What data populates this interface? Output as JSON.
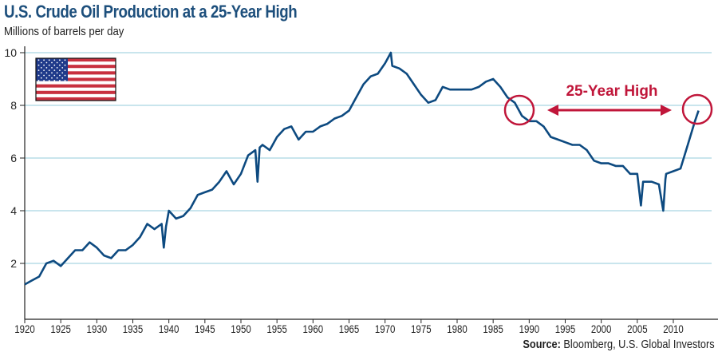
{
  "chart_data": {
    "type": "line",
    "title": "U.S. Crude Oil Production at a 25-Year High",
    "ylabel": "Millions of barrels per day",
    "xlabel": "",
    "source_label": "Source:",
    "source_text": "Bloomberg, U.S. Global Investors",
    "xlim": [
      1920,
      2016
    ],
    "ylim": [
      0,
      10.3
    ],
    "xticks": [
      "1920",
      "1925",
      "1930",
      "1935",
      "1940",
      "1945",
      "1950",
      "1955",
      "1960",
      "1965",
      "1970",
      "1975",
      "1980",
      "1985",
      "1990",
      "1995",
      "2000",
      "2005",
      "2010"
    ],
    "yticks": [
      "2",
      "4",
      "6",
      "8",
      "10"
    ],
    "grid": true,
    "line_color": "#0d4a80",
    "annotation": {
      "label": "25-Year High",
      "color": "#c0163a",
      "from_year": 1989.5,
      "to_year": 2013.5,
      "level": 7.8
    },
    "series": [
      {
        "x": [
          1920,
          1921,
          1922,
          1923,
          1924,
          1925,
          1926,
          1927,
          1928,
          1929,
          1930,
          1931,
          1932,
          1933,
          1934,
          1935,
          1936,
          1937,
          1938,
          1939,
          1939.3,
          1939.6,
          1940,
          1941,
          1942,
          1943,
          1944,
          1945,
          1946,
          1947,
          1948,
          1949,
          1950,
          1951,
          1952,
          1952.3,
          1952.6,
          1953,
          1954,
          1955,
          1956,
          1957,
          1958,
          1959,
          1960,
          1961,
          1962,
          1963,
          1964,
          1965,
          1966,
          1967,
          1968,
          1969,
          1970,
          1970.8,
          1971,
          1972,
          1973,
          1974,
          1975,
          1976,
          1977,
          1978,
          1979,
          1980,
          1981,
          1982,
          1983,
          1984,
          1985,
          1986,
          1987,
          1988,
          1989,
          1990,
          1991,
          1992,
          1993,
          1994,
          1995,
          1996,
          1997,
          1998,
          1999,
          2000,
          2001,
          2002,
          2003,
          2004,
          2005,
          2005.5,
          2005.8,
          2006,
          2007,
          2008,
          2008.6,
          2008.9,
          2009,
          2010,
          2011,
          2012,
          2013,
          2013.5
        ],
        "values": [
          1.2,
          1.35,
          1.5,
          2.0,
          2.1,
          1.9,
          2.2,
          2.5,
          2.5,
          2.8,
          2.6,
          2.3,
          2.2,
          2.5,
          2.5,
          2.7,
          3.0,
          3.5,
          3.3,
          3.5,
          2.6,
          3.4,
          4.0,
          3.7,
          3.8,
          4.1,
          4.6,
          4.7,
          4.8,
          5.1,
          5.5,
          5.0,
          5.4,
          6.1,
          6.3,
          5.1,
          6.4,
          6.5,
          6.3,
          6.8,
          7.1,
          7.2,
          6.7,
          7.0,
          7.0,
          7.2,
          7.3,
          7.5,
          7.6,
          7.8,
          8.3,
          8.8,
          9.1,
          9.2,
          9.6,
          10.0,
          9.5,
          9.4,
          9.2,
          8.8,
          8.4,
          8.1,
          8.2,
          8.7,
          8.6,
          8.6,
          8.6,
          8.6,
          8.7,
          8.9,
          9.0,
          8.7,
          8.3,
          8.1,
          7.6,
          7.4,
          7.4,
          7.2,
          6.8,
          6.7,
          6.6,
          6.5,
          6.5,
          6.3,
          5.9,
          5.8,
          5.8,
          5.7,
          5.7,
          5.4,
          5.4,
          4.2,
          5.1,
          5.1,
          5.1,
          5.0,
          4.0,
          5.2,
          5.4,
          5.5,
          5.6,
          6.5,
          7.4,
          7.8
        ]
      }
    ]
  },
  "flag": {
    "stripe_red": "#c8303f",
    "canton_blue": "#1f3a8a"
  }
}
